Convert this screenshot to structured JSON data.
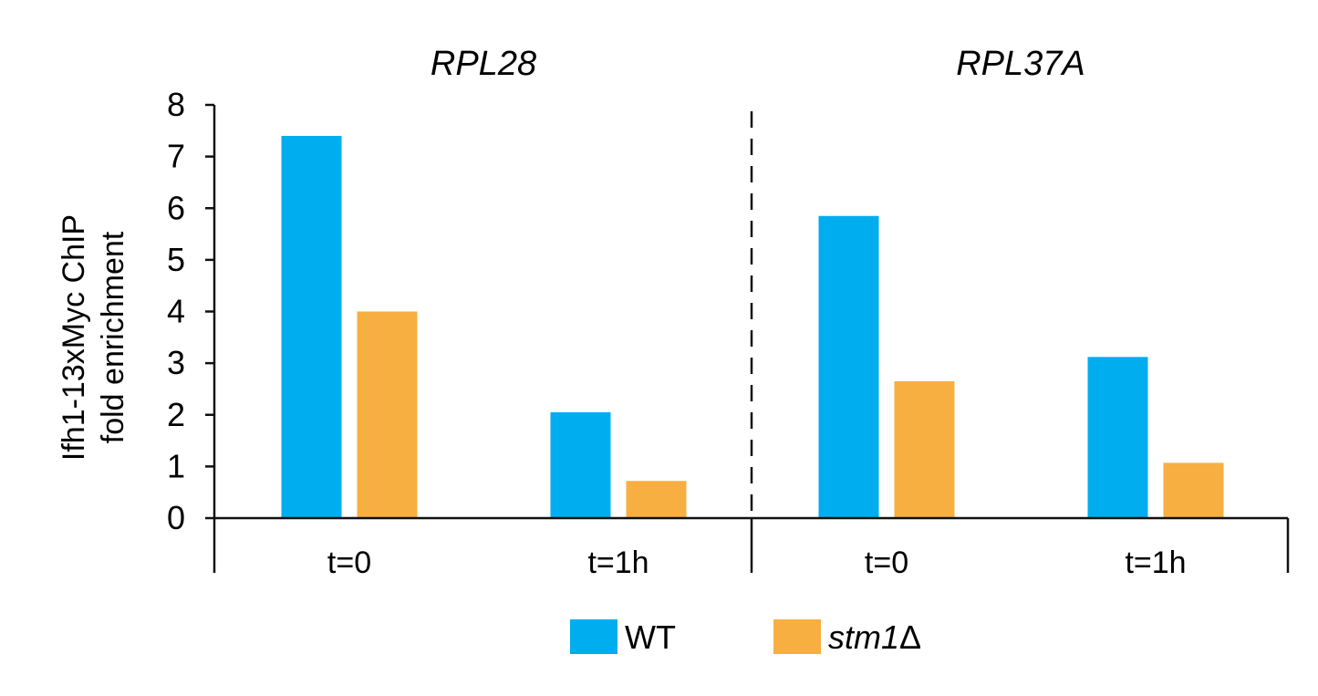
{
  "chart_data": {
    "type": "bar",
    "ylabel_lines": [
      "Ifh1-13xMyc ChIP",
      "fold enrichment"
    ],
    "ylim": [
      0,
      8
    ],
    "yticks": [
      "0",
      "1",
      "2",
      "3",
      "4",
      "5",
      "6",
      "7",
      "8"
    ],
    "groups": [
      {
        "title": "RPL28",
        "categories": [
          "t=0",
          "t=1h"
        ]
      },
      {
        "title": "RPL37A",
        "categories": [
          "t=0",
          "t=1h"
        ]
      }
    ],
    "series": [
      {
        "name": "WT",
        "color": "#00AEEF",
        "values": [
          7.4,
          2.05,
          5.85,
          3.12
        ]
      },
      {
        "name": "stm1Δ",
        "italic_part": "stm1",
        "suffix": "Δ",
        "color": "#F7AF42",
        "values": [
          4.0,
          0.72,
          2.65,
          1.07
        ]
      }
    ],
    "grid": false,
    "legend_position": "bottom"
  }
}
